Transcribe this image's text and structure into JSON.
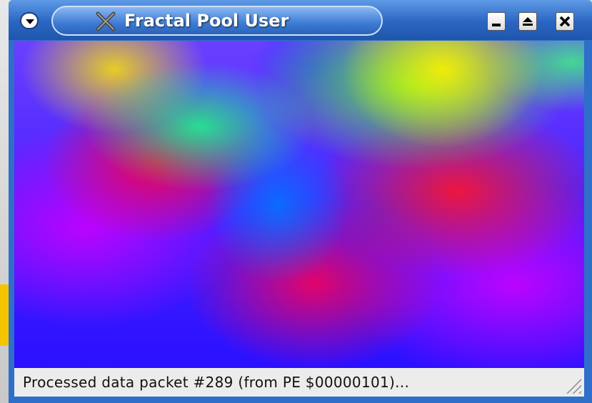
{
  "window": {
    "title": "Fractal Pool User"
  },
  "status_bar": {
    "text": "Processed data packet #289 (from PE $00000101)..."
  }
}
